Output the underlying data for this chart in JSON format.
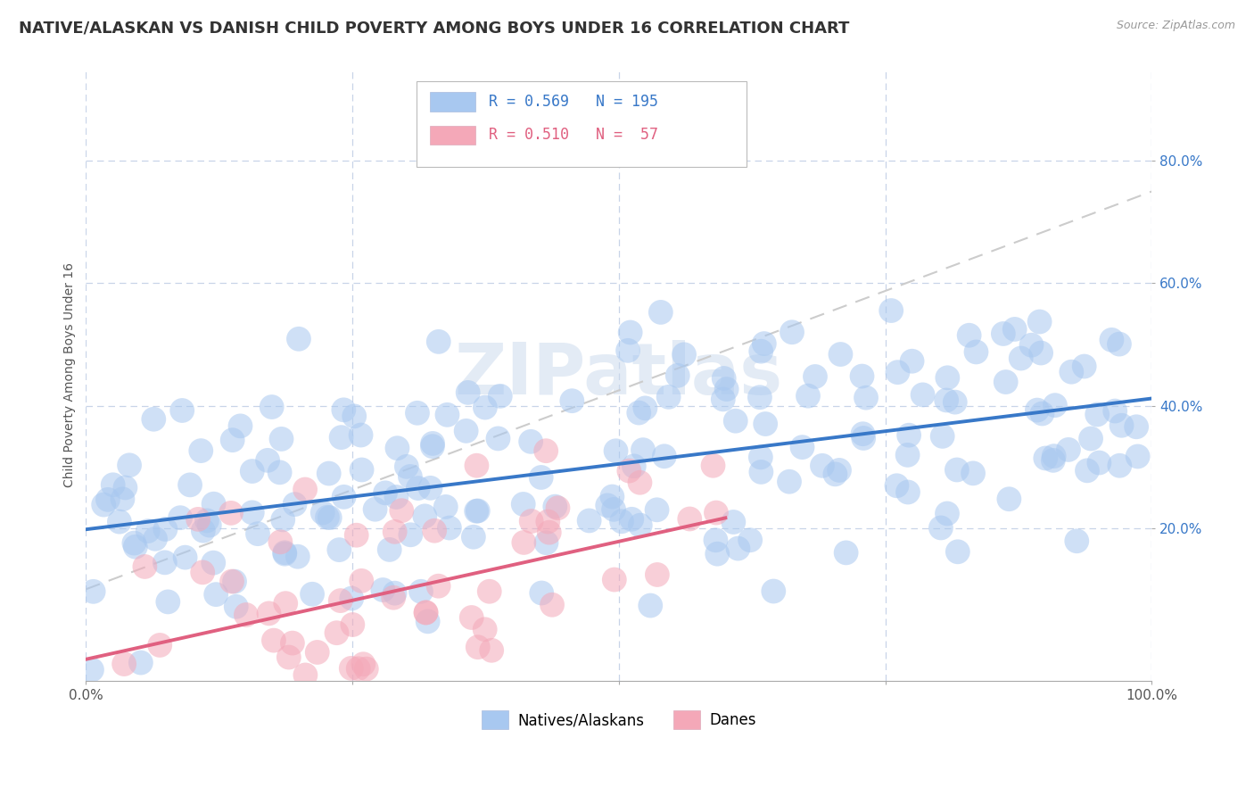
{
  "title": "NATIVE/ALASKAN VS DANISH CHILD POVERTY AMONG BOYS UNDER 16 CORRELATION CHART",
  "source": "Source: ZipAtlas.com",
  "ylabel": "Child Poverty Among Boys Under 16",
  "xlim": [
    0.0,
    1.0
  ],
  "ylim": [
    -0.05,
    0.95
  ],
  "xticks": [
    0.0,
    0.25,
    0.5,
    0.75,
    1.0
  ],
  "xtick_labels_show": [
    "0.0%",
    "",
    "",
    "",
    "100.0%"
  ],
  "yticks": [
    0.2,
    0.4,
    0.6,
    0.8
  ],
  "ytick_labels": [
    "20.0%",
    "40.0%",
    "60.0%",
    "80.0%"
  ],
  "native_R": 0.569,
  "native_N": 195,
  "danish_R": 0.51,
  "danish_N": 57,
  "native_color": "#a8c8f0",
  "danish_color": "#f4a8b8",
  "native_line_color": "#3878c8",
  "danish_line_color": "#e06080",
  "trend_line_color": "#cccccc",
  "title_fontsize": 13,
  "axis_label_fontsize": 10,
  "tick_fontsize": 11,
  "legend_fontsize": 12,
  "background_color": "#ffffff",
  "grid_color": "#c8d4e8",
  "watermark": "ZIPatlas"
}
